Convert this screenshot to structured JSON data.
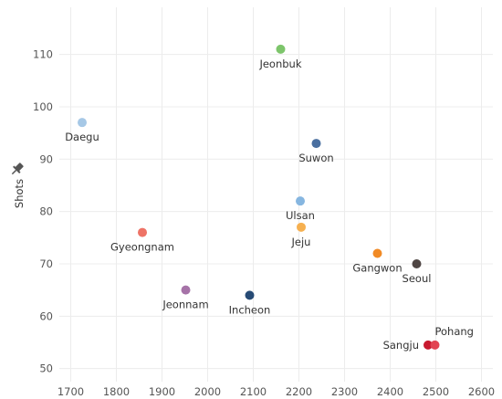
{
  "chart_data": {
    "type": "scatter",
    "title": "",
    "xlabel": "",
    "ylabel": "Shots",
    "xlim": [
      1675,
      2625
    ],
    "ylim": [
      47.5,
      119
    ],
    "x_ticks": [
      1700,
      1800,
      1900,
      2000,
      2100,
      2200,
      2300,
      2400,
      2500,
      2600
    ],
    "y_ticks": [
      50,
      60,
      70,
      80,
      90,
      100,
      110
    ],
    "grid": true,
    "points": [
      {
        "label": "Jeonbuk",
        "x": 2160,
        "y": 111,
        "color": "#7dc56b"
      },
      {
        "label": "Daegu",
        "x": 1725,
        "y": 97,
        "color": "#a6c8e6"
      },
      {
        "label": "Suwon",
        "x": 2238,
        "y": 93,
        "color": "#4a6fa0"
      },
      {
        "label": "Ulsan",
        "x": 2203,
        "y": 82,
        "color": "#86b6e0"
      },
      {
        "label": "Jeju",
        "x": 2205,
        "y": 77,
        "color": "#f6b050"
      },
      {
        "label": "Gyeongnam",
        "x": 1857,
        "y": 76,
        "color": "#ee7366"
      },
      {
        "label": "Gangwon",
        "x": 2372,
        "y": 72,
        "color": "#f18a25"
      },
      {
        "label": "Seoul",
        "x": 2458,
        "y": 70,
        "color": "#4f4644"
      },
      {
        "label": "Jeonnam",
        "x": 1952,
        "y": 65,
        "color": "#a673a8"
      },
      {
        "label": "Incheon",
        "x": 2092,
        "y": 64,
        "color": "#274b75"
      },
      {
        "label": "Sangju",
        "x": 2483,
        "y": 54.5,
        "color": "#c8192e"
      },
      {
        "label": "Pohang",
        "x": 2498,
        "y": 54.5,
        "color": "#e24452"
      }
    ]
  },
  "icons": {
    "axis_pin": "pin-icon"
  }
}
